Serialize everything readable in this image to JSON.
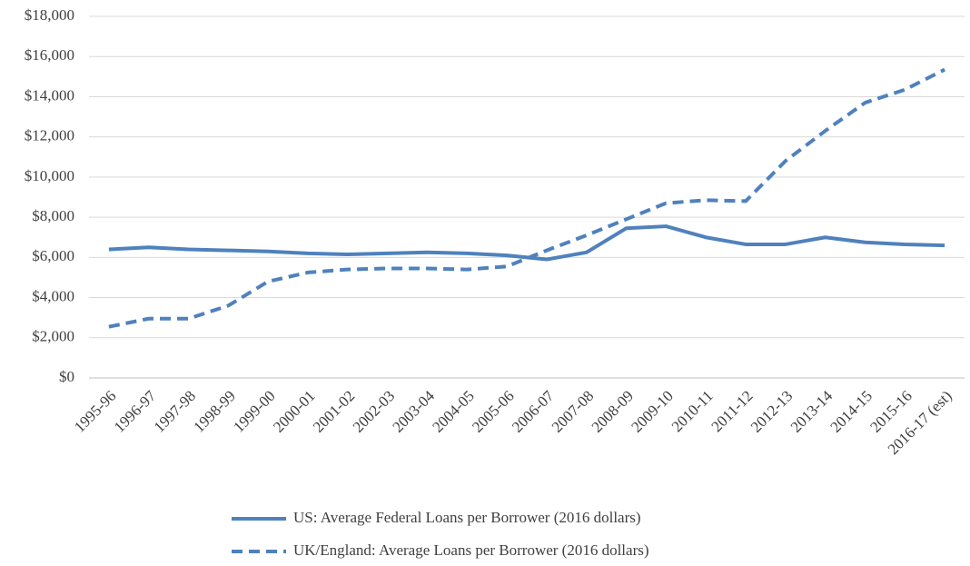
{
  "chart_data": {
    "type": "line",
    "categories": [
      "1995-96",
      "1996-97",
      "1997-98",
      "1998-99",
      "1999-00",
      "2000-01",
      "2001-02",
      "2002-03",
      "2003-04",
      "2004-05",
      "2005-06",
      "2006-07",
      "2007-08",
      "2008-09",
      "2009-10",
      "2010-11",
      "2011-12",
      "2012-13",
      "2013-14",
      "2014-15",
      "2015-16",
      "2016-17 (est)"
    ],
    "series": [
      {
        "name": "US: Average Federal Loans per Borrower (2016 dollars)",
        "color": "#4f81bd",
        "dash": false,
        "values": [
          6400,
          6500,
          6400,
          6350,
          6300,
          6200,
          6150,
          6200,
          6250,
          6200,
          6100,
          5900,
          6250,
          7450,
          7550,
          7000,
          6650,
          6650,
          7000,
          6750,
          6650,
          6600
        ]
      },
      {
        "name": "UK/England: Average Loans per Borrower (2016 dollars)",
        "color": "#4f81bd",
        "dash": true,
        "values": [
          2550,
          2950,
          2950,
          3600,
          4800,
          5250,
          5400,
          5450,
          5450,
          5400,
          5550,
          6350,
          7100,
          7900,
          8700,
          8850,
          8800,
          10800,
          12300,
          13700,
          14350,
          15350
        ]
      }
    ],
    "ylim": [
      0,
      18000
    ],
    "yticks": [
      {
        "value": 0,
        "label": "$0"
      },
      {
        "value": 2000,
        "label": "$2,000"
      },
      {
        "value": 4000,
        "label": "$4,000"
      },
      {
        "value": 6000,
        "label": "$6,000"
      },
      {
        "value": 8000,
        "label": "$8,000"
      },
      {
        "value": 10000,
        "label": "$10,000"
      },
      {
        "value": 12000,
        "label": "$12,000"
      },
      {
        "value": 14000,
        "label": "$14,000"
      },
      {
        "value": 16000,
        "label": "$16,000"
      },
      {
        "value": 18000,
        "label": "$18,000"
      }
    ],
    "grid": true,
    "legend": "bottom"
  }
}
